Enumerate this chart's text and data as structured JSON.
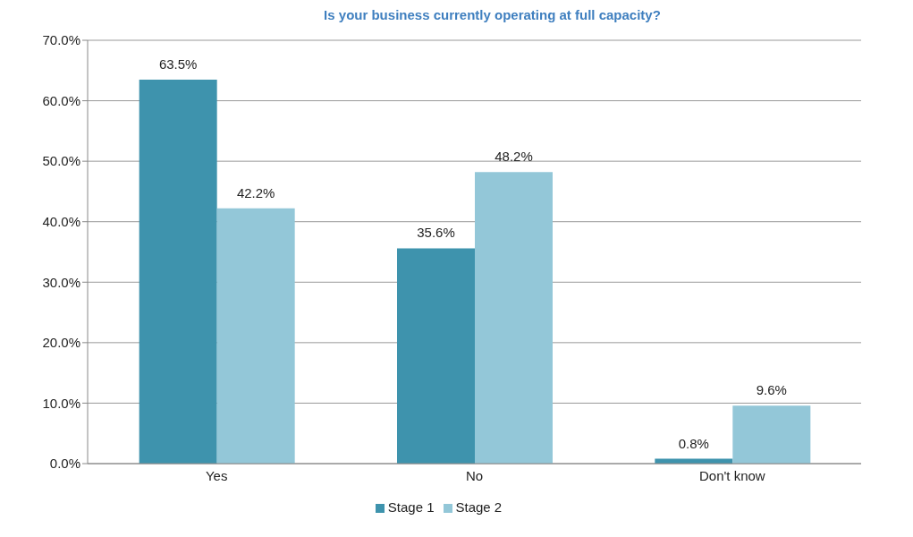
{
  "chart_data": {
    "type": "bar",
    "title": "Is your business currently operating at full capacity?",
    "categories": [
      "Yes",
      "No",
      "Don't know"
    ],
    "series": [
      {
        "name": "Stage 1",
        "color": "#3e93ad",
        "values": [
          63.5,
          35.6,
          0.8
        ],
        "value_labels": [
          "63.5%",
          "35.6%",
          "0.8%"
        ]
      },
      {
        "name": "Stage 2",
        "color": "#93c7d8",
        "values": [
          42.2,
          48.2,
          9.6
        ],
        "value_labels": [
          "42.2%",
          "48.2%",
          "9.6%"
        ]
      }
    ],
    "ylim": [
      0,
      70
    ],
    "yticks": [
      {
        "value": 0,
        "label": "0.0%"
      },
      {
        "value": 10,
        "label": "10.0%"
      },
      {
        "value": 20,
        "label": "20.0%"
      },
      {
        "value": 30,
        "label": "30.0%"
      },
      {
        "value": 40,
        "label": "40.0%"
      },
      {
        "value": 50,
        "label": "50.0%"
      },
      {
        "value": 60,
        "label": "60.0%"
      },
      {
        "value": 70,
        "label": "70.0%"
      }
    ],
    "grid": "y",
    "legend": "bottom"
  }
}
